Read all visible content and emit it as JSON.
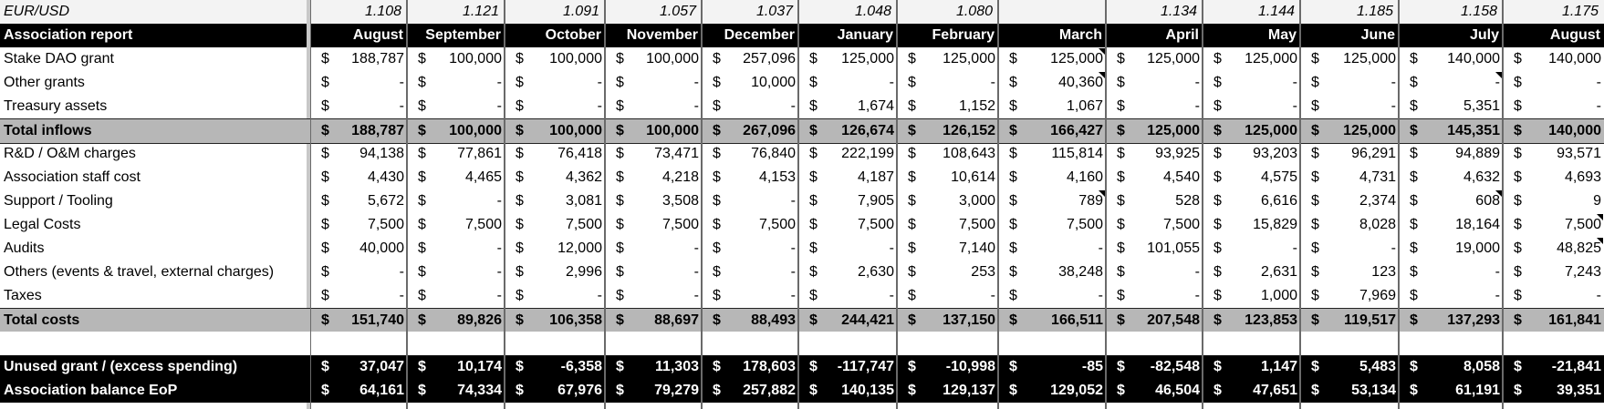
{
  "sheet": {
    "rate_label": "EUR/USD",
    "rates": [
      "1.108",
      "1.121",
      "1.091",
      "1.057",
      "1.037",
      "1.048",
      "1.080",
      "",
      "1.134",
      "1.144",
      "1.185",
      "1.158",
      "1.175"
    ],
    "header_label": "Association report",
    "months": [
      "August",
      "September",
      "October",
      "November",
      "December",
      "January",
      "February",
      "March",
      "April",
      "May",
      "June",
      "July",
      "August"
    ],
    "currency_symbol": "$",
    "rows": [
      {
        "label": "Stake DAO grant",
        "type": "normal",
        "values": [
          "188,787",
          "100,000",
          "100,000",
          "100,000",
          "257,096",
          "125,000",
          "125,000",
          "125,000",
          "125,000",
          "125,000",
          "125,000",
          "140,000",
          "140,000"
        ]
      },
      {
        "label": "Other grants",
        "type": "normal",
        "values": [
          "-",
          "-",
          "-",
          "-",
          "10,000",
          "-",
          "-",
          "40,360",
          "-",
          "-",
          "-",
          "-",
          "-"
        ]
      },
      {
        "label": "Treasury assets",
        "type": "normal",
        "values": [
          "-",
          "-",
          "-",
          "-",
          "-",
          "1,674",
          "1,152",
          "1,067",
          "-",
          "-",
          "-",
          "5,351",
          "-"
        ]
      },
      {
        "label": "Total inflows",
        "type": "total",
        "values": [
          "188,787",
          "100,000",
          "100,000",
          "100,000",
          "267,096",
          "126,674",
          "126,152",
          "166,427",
          "125,000",
          "125,000",
          "125,000",
          "145,351",
          "140,000"
        ]
      },
      {
        "label": "R&D / O&M charges",
        "type": "normal",
        "values": [
          "94,138",
          "77,861",
          "76,418",
          "73,471",
          "76,840",
          "222,199",
          "108,643",
          "115,814",
          "93,925",
          "93,203",
          "96,291",
          "94,889",
          "93,571"
        ]
      },
      {
        "label": "Association staff cost",
        "type": "normal",
        "values": [
          "4,430",
          "4,465",
          "4,362",
          "4,218",
          "4,153",
          "4,187",
          "10,614",
          "4,160",
          "4,540",
          "4,575",
          "4,731",
          "4,632",
          "4,693"
        ]
      },
      {
        "label": "Support / Tooling",
        "type": "normal",
        "values": [
          "5,672",
          "-",
          "3,081",
          "3,508",
          "-",
          "7,905",
          "3,000",
          "789",
          "528",
          "6,616",
          "2,374",
          "608",
          "9"
        ]
      },
      {
        "label": "Legal Costs",
        "type": "normal",
        "values": [
          "7,500",
          "7,500",
          "7,500",
          "7,500",
          "7,500",
          "7,500",
          "7,500",
          "7,500",
          "7,500",
          "15,829",
          "8,028",
          "18,164",
          "7,500"
        ]
      },
      {
        "label": "Audits",
        "type": "normal",
        "values": [
          "40,000",
          "-",
          "12,000",
          "-",
          "-",
          "-",
          "7,140",
          "-",
          "101,055",
          "-",
          "-",
          "19,000",
          "48,825"
        ]
      },
      {
        "label": "Others (events & travel, external charges)",
        "type": "normal",
        "values": [
          "-",
          "-",
          "2,996",
          "-",
          "-",
          "2,630",
          "253",
          "38,248",
          "-",
          "2,631",
          "123",
          "-",
          "7,243"
        ]
      },
      {
        "label": "Taxes",
        "type": "normal",
        "values": [
          "-",
          "-",
          "-",
          "-",
          "-",
          "-",
          "-",
          "-",
          "-",
          "1,000",
          "7,969",
          "-",
          "-"
        ]
      },
      {
        "label": "Total costs",
        "type": "total",
        "values": [
          "151,740",
          "89,826",
          "106,358",
          "88,697",
          "88,493",
          "244,421",
          "137,150",
          "166,511",
          "207,548",
          "123,853",
          "119,517",
          "137,293",
          "161,841"
        ]
      },
      {
        "label": "",
        "type": "spacer",
        "values": []
      },
      {
        "label": "Unused grant / (excess spending)",
        "type": "dark",
        "values": [
          "37,047",
          "10,174",
          "-6,358",
          "11,303",
          "178,603",
          "-117,747",
          "-10,998",
          "-85",
          "-82,548",
          "1,147",
          "5,483",
          "8,058",
          "-21,841"
        ]
      },
      {
        "label": "Association balance EoP",
        "type": "dark",
        "values": [
          "64,161",
          "74,334",
          "67,976",
          "79,279",
          "257,882",
          "140,135",
          "129,137",
          "129,052",
          "46,504",
          "47,651",
          "53,134",
          "61,191",
          "39,351"
        ]
      }
    ]
  }
}
